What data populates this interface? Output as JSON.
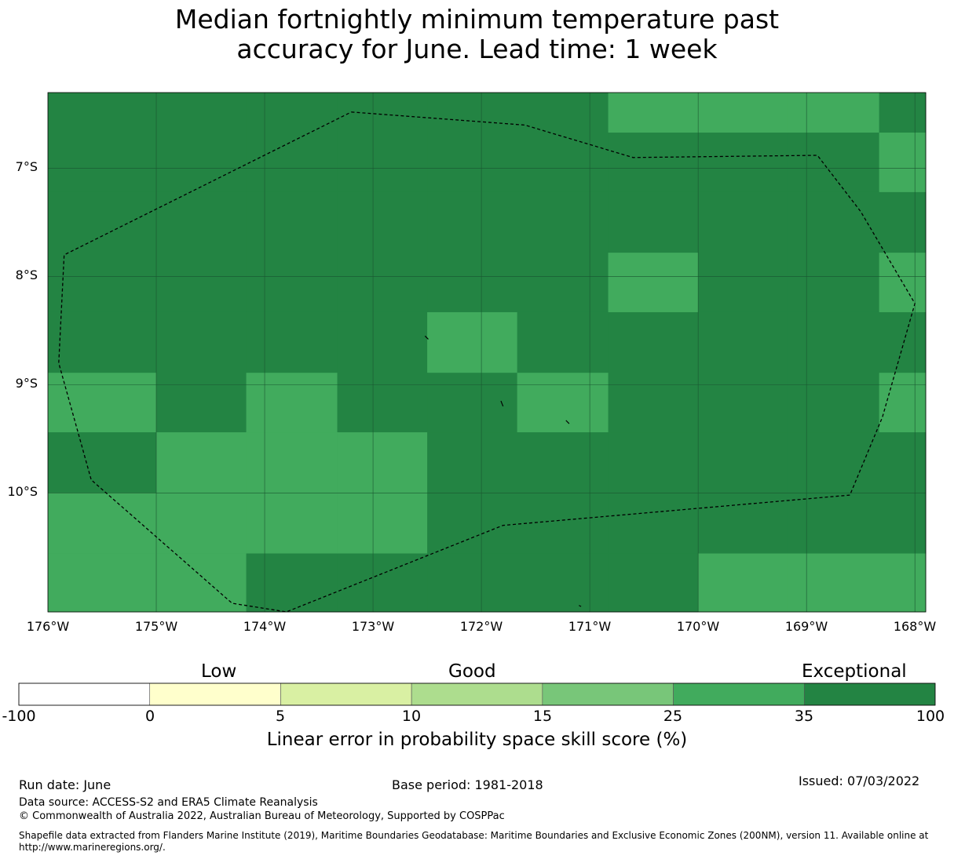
{
  "title": {
    "line1": "Median fortnightly minimum temperature past",
    "line2": "accuracy for June. Lead time: 1 week"
  },
  "map": {
    "lat_labels": [
      "7°S",
      "8°S",
      "9°S",
      "10°S"
    ],
    "lon_labels": [
      "176°W",
      "175°W",
      "174°W",
      "173°W",
      "172°W",
      "171°W",
      "170°W",
      "169°W",
      "168°W"
    ],
    "lon_range": [
      -176,
      -167.9
    ],
    "lat_range": [
      -11.1,
      -6.3
    ],
    "colors": {
      "35-100": "#238443",
      "25-35": "#41ab5d",
      "boundary": "#000000",
      "grid": "#1a5530"
    },
    "cells": {
      "lon_edges": [
        -176,
        -175,
        -174.17,
        -173.33,
        -172.5,
        -171.67,
        -170.83,
        -170,
        -169.17,
        -168.33,
        -167.9
      ],
      "lat_edges": [
        -6.3,
        -6.67,
        -7.22,
        -7.78,
        -8.33,
        -8.89,
        -9.44,
        -10,
        -10.56,
        -11.1
      ],
      "classes": [
        [
          35,
          35,
          35,
          35,
          35,
          35,
          25,
          25,
          25,
          35
        ],
        [
          35,
          35,
          35,
          35,
          35,
          35,
          35,
          35,
          35,
          25
        ],
        [
          35,
          35,
          35,
          35,
          35,
          35,
          35,
          35,
          35,
          35
        ],
        [
          35,
          35,
          35,
          35,
          35,
          35,
          25,
          35,
          35,
          25
        ],
        [
          35,
          35,
          35,
          35,
          25,
          35,
          35,
          35,
          35,
          35
        ],
        [
          25,
          35,
          25,
          35,
          35,
          25,
          35,
          35,
          35,
          25
        ],
        [
          35,
          25,
          25,
          25,
          35,
          35,
          35,
          35,
          35,
          35
        ],
        [
          25,
          25,
          25,
          25,
          35,
          35,
          35,
          35,
          35,
          35
        ],
        [
          25,
          25,
          35,
          35,
          35,
          35,
          35,
          25,
          25,
          25
        ]
      ]
    },
    "eez_boundary": [
      [
        -173.2,
        -6.48
      ],
      [
        -171.6,
        -6.6
      ],
      [
        -170.6,
        -6.9
      ],
      [
        -168.9,
        -6.88
      ],
      [
        -168.5,
        -7.4
      ],
      [
        -168.0,
        -8.25
      ],
      [
        -168.3,
        -9.3
      ],
      [
        -168.6,
        -10.02
      ],
      [
        -171.8,
        -10.3
      ],
      [
        -173.8,
        -11.1
      ],
      [
        -174.3,
        -11.02
      ],
      [
        -175.6,
        -9.88
      ],
      [
        -175.9,
        -8.8
      ],
      [
        -175.85,
        -7.8
      ],
      [
        -173.2,
        -6.48
      ]
    ],
    "islands": [
      [
        [
          -172.52,
          -8.55
        ],
        [
          -172.49,
          -8.58
        ]
      ],
      [
        [
          -171.82,
          -9.15
        ],
        [
          -171.8,
          -9.2
        ]
      ],
      [
        [
          -171.22,
          -9.33
        ],
        [
          -171.19,
          -9.36
        ]
      ],
      [
        [
          -171.1,
          -11.04
        ],
        [
          -171.08,
          -11.05
        ]
      ]
    ]
  },
  "colorbar": {
    "categories": [
      "Low",
      "Good",
      "Exceptional"
    ],
    "ticks": [
      "-100",
      "0",
      "5",
      "10",
      "15",
      "25",
      "35",
      "100"
    ],
    "colors": [
      "#ffffff",
      "#ffffcc",
      "#d9f0a3",
      "#addd8e",
      "#78c679",
      "#41ab5d",
      "#238443"
    ],
    "label": "Linear error in probability space skill score (%)"
  },
  "footer": {
    "run_date": "Run date: June",
    "base_period": "Base period: 1981-2018",
    "issued": "Issued: 07/03/2022",
    "data_source": "Data source: ACCESS-S2 and ERA5 Climate Reanalysis",
    "copyright": "© Commonwealth of Australia 2022, Australian Bureau of Meteorology, Supported by COSPPac",
    "shapefile_line1": "Shapefile data extracted from Flanders Marine Institute (2019), Maritime Boundaries Geodatabase: Maritime Boundaries and Exclusive Economic Zones (200NM), version 11. Available online at",
    "shapefile_line2": "http://www.marineregions.org/."
  }
}
